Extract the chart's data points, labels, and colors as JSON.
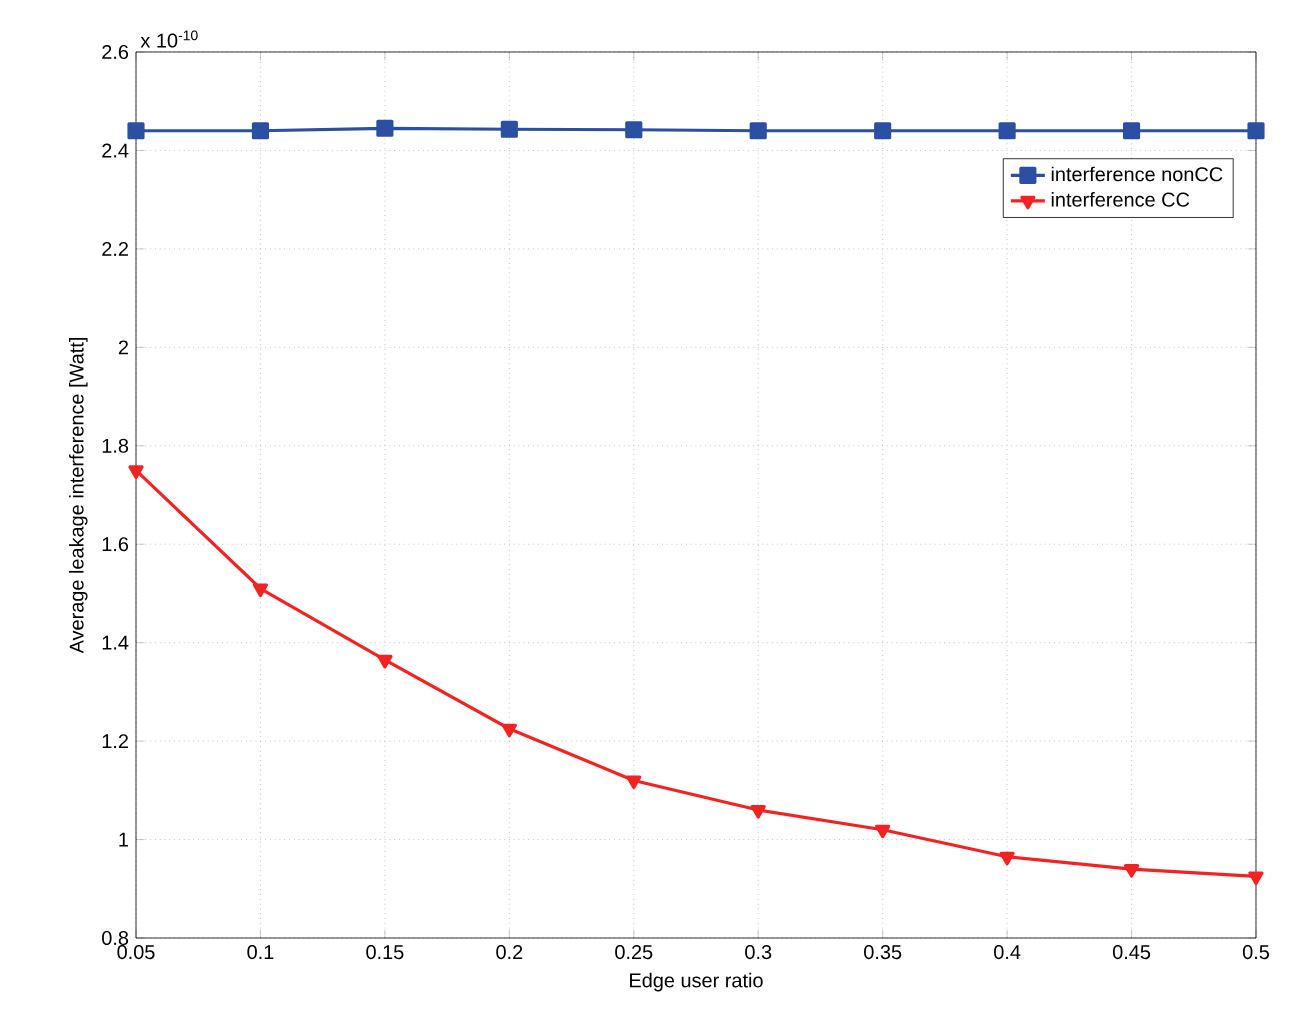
{
  "chart_data": {
    "type": "line",
    "xlabel": "Edge user ratio",
    "ylabel": "Average leakage interference [Watt]",
    "annotations": [
      "x 10$^{-10}$"
    ],
    "x": [
      0.05,
      0.1,
      0.15,
      0.2,
      0.25,
      0.3,
      0.35,
      0.4,
      0.45,
      0.5
    ],
    "series": [
      {
        "name": "interference nonCC",
        "color": "#2b4fa3",
        "marker": "square",
        "values": [
          2.44,
          2.44,
          2.445,
          2.443,
          2.442,
          2.44,
          2.44,
          2.44,
          2.44,
          2.44
        ]
      },
      {
        "name": "interference CC",
        "color": "#f52222",
        "marker": "triangle",
        "values": [
          1.75,
          1.51,
          1.365,
          1.225,
          1.12,
          1.06,
          1.02,
          0.965,
          0.94,
          0.925
        ]
      }
    ],
    "xlim": [
      0.05,
      0.5
    ],
    "ylim": [
      0.8,
      2.6
    ],
    "xticks": [
      0.05,
      0.1,
      0.15,
      0.2,
      0.25,
      0.3,
      0.35,
      0.4,
      0.45,
      0.5
    ],
    "yticks": [
      0.8,
      1,
      1.2,
      1.4,
      1.6,
      1.8,
      2,
      2.2,
      2.4,
      2.6
    ],
    "grid": true,
    "legend": "top right",
    "line_style": "solid"
  }
}
